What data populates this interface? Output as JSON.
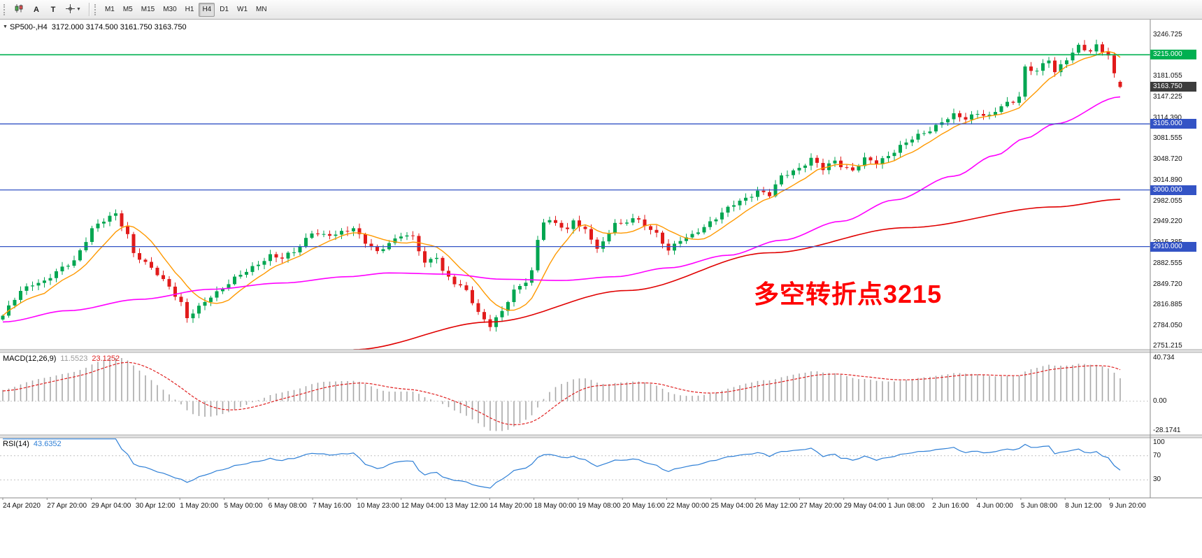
{
  "toolbar": {
    "button_a": "A",
    "button_t": "T",
    "timeframes": [
      "M1",
      "M5",
      "M15",
      "M30",
      "H1",
      "H4",
      "D1",
      "W1",
      "MN"
    ],
    "active_timeframe": "H4"
  },
  "chart": {
    "title": "SP500-,H4",
    "ohlc_text": "3172.000 3174.500 3161.750 3163.750",
    "last_ohlc": [
      3172.0,
      3174.5,
      3161.75,
      3163.75
    ],
    "candle_count": 189,
    "annotation": {
      "text": "多空转折点3215",
      "color": "#ff0000"
    },
    "price_axis": {
      "labels": [
        {
          "text": "3246.725",
          "value": 3246.725
        },
        {
          "text": "3181.055",
          "value": 3181.055
        },
        {
          "text": "3147.225",
          "value": 3147.225
        },
        {
          "text": "3114.390",
          "value": 3114.39
        },
        {
          "text": "3081.555",
          "value": 3081.555
        },
        {
          "text": "3048.720",
          "value": 3048.72
        },
        {
          "text": "3014.890",
          "value": 3014.89
        },
        {
          "text": "2982.055",
          "value": 2982.055
        },
        {
          "text": "2949.220",
          "value": 2949.22
        },
        {
          "text": "2916.385",
          "value": 2916.385
        },
        {
          "text": "2882.555",
          "value": 2882.555
        },
        {
          "text": "2849.720",
          "value": 2849.72
        },
        {
          "text": "2816.885",
          "value": 2816.885
        },
        {
          "text": "2784.050",
          "value": 2784.05
        },
        {
          "text": "2751.215",
          "value": 2751.215
        }
      ],
      "badges": [
        {
          "text": "3215.000",
          "value": 3215.0,
          "bg": "#00b050"
        },
        {
          "text": "3163.750",
          "value": 3163.75,
          "bg": "#3c3c3c"
        },
        {
          "text": "3105.000",
          "value": 3105.0,
          "bg": "#3353c5"
        },
        {
          "text": "3000.000",
          "value": 3000.0,
          "bg": "#3353c5"
        },
        {
          "text": "2910.000",
          "value": 2910.0,
          "bg": "#3353c5"
        }
      ]
    },
    "hlines": [
      {
        "value": 3215.0,
        "color": "#00b050",
        "width": 1.6
      },
      {
        "value": 3105.0,
        "color": "#3353c5",
        "width": 1.3
      },
      {
        "value": 3000.0,
        "color": "#3353c5",
        "width": 1.3
      },
      {
        "value": 2910.0,
        "color": "#3353c5",
        "width": 1.3
      }
    ],
    "price_path": [
      [
        0,
        2800
      ],
      [
        3,
        2838
      ],
      [
        5,
        2852
      ],
      [
        7,
        2855
      ],
      [
        9,
        2868
      ],
      [
        12,
        2888
      ],
      [
        15,
        2938
      ],
      [
        19,
        2962
      ],
      [
        21,
        2930
      ],
      [
        22,
        2900
      ],
      [
        24,
        2882
      ],
      [
        26,
        2866
      ],
      [
        28,
        2848
      ],
      [
        30,
        2820
      ],
      [
        31,
        2795
      ],
      [
        33,
        2812
      ],
      [
        35,
        2832
      ],
      [
        37,
        2845
      ],
      [
        39,
        2858
      ],
      [
        41,
        2870
      ],
      [
        43,
        2884
      ],
      [
        45,
        2896
      ],
      [
        47,
        2890
      ],
      [
        49,
        2902
      ],
      [
        52,
        2934
      ],
      [
        54,
        2926
      ],
      [
        56,
        2928
      ],
      [
        58,
        2938
      ],
      [
        59,
        2941
      ],
      [
        61,
        2916
      ],
      [
        63,
        2899
      ],
      [
        65,
        2916
      ],
      [
        67,
        2930
      ],
      [
        69,
        2924
      ],
      [
        71,
        2882
      ],
      [
        73,
        2896
      ],
      [
        74,
        2872
      ],
      [
        76,
        2852
      ],
      [
        78,
        2838
      ],
      [
        80,
        2805
      ],
      [
        82,
        2786
      ],
      [
        84,
        2806
      ],
      [
        86,
        2838
      ],
      [
        88,
        2856
      ],
      [
        89,
        2872
      ],
      [
        90,
        2922
      ],
      [
        91,
        2950
      ],
      [
        93,
        2946
      ],
      [
        95,
        2936
      ],
      [
        96,
        2954
      ],
      [
        98,
        2936
      ],
      [
        100,
        2906
      ],
      [
        101,
        2914
      ],
      [
        103,
        2950
      ],
      [
        104,
        2946
      ],
      [
        106,
        2956
      ],
      [
        108,
        2942
      ],
      [
        110,
        2930
      ],
      [
        112,
        2906
      ],
      [
        114,
        2920
      ],
      [
        116,
        2926
      ],
      [
        119,
        2950
      ],
      [
        121,
        2964
      ],
      [
        123,
        2976
      ],
      [
        125,
        2986
      ],
      [
        127,
        3000
      ],
      [
        129,
        2992
      ],
      [
        131,
        3020
      ],
      [
        134,
        3036
      ],
      [
        136,
        3050
      ],
      [
        138,
        3032
      ],
      [
        140,
        3046
      ],
      [
        141,
        3040
      ],
      [
        143,
        3032
      ],
      [
        145,
        3048
      ],
      [
        147,
        3042
      ],
      [
        149,
        3056
      ],
      [
        151,
        3070
      ],
      [
        153,
        3080
      ],
      [
        156,
        3096
      ],
      [
        158,
        3110
      ],
      [
        160,
        3118
      ],
      [
        162,
        3112
      ],
      [
        164,
        3124
      ],
      [
        166,
        3118
      ],
      [
        168,
        3132
      ],
      [
        170,
        3140
      ],
      [
        171,
        3150
      ],
      [
        172,
        3196
      ],
      [
        174,
        3190
      ],
      [
        176,
        3206
      ],
      [
        177,
        3186
      ],
      [
        179,
        3210
      ],
      [
        181,
        3230
      ],
      [
        183,
        3218
      ],
      [
        184,
        3228
      ],
      [
        186,
        3214
      ],
      [
        187,
        3186
      ],
      [
        188,
        3163.75
      ]
    ],
    "ma_medium": [
      [
        0,
        2790
      ],
      [
        11,
        2808
      ],
      [
        23,
        2826
      ],
      [
        35,
        2842
      ],
      [
        47,
        2852
      ],
      [
        58,
        2862
      ],
      [
        65,
        2868
      ],
      [
        75,
        2866
      ],
      [
        84,
        2858
      ],
      [
        94,
        2856
      ],
      [
        103,
        2862
      ],
      [
        112,
        2876
      ],
      [
        122,
        2896
      ],
      [
        131,
        2920
      ],
      [
        141,
        2950
      ],
      [
        150,
        2984
      ],
      [
        160,
        3022
      ],
      [
        167,
        3055
      ],
      [
        172,
        3082
      ],
      [
        177,
        3105
      ],
      [
        188,
        3148
      ]
    ],
    "ma_slow": [
      [
        59,
        2746
      ],
      [
        82,
        2790
      ],
      [
        105,
        2840
      ],
      [
        129,
        2900
      ],
      [
        152,
        2940
      ],
      [
        177,
        2973
      ],
      [
        188,
        2985
      ]
    ]
  },
  "macd": {
    "label": "MACD(12,26,9)",
    "value_main": "11.5523",
    "value_signal": "23.1252",
    "axis": [
      {
        "text": "40.734",
        "value": 40.734
      },
      {
        "text": "0.00",
        "value": 0
      },
      {
        "text": "-28.1741",
        "value": -28.1741
      }
    ],
    "range": {
      "max": 40.734,
      "min": -28.1741
    }
  },
  "rsi": {
    "label": "RSI(14)",
    "value": "43.6352",
    "axis": [
      {
        "text": "100",
        "value": 100
      },
      {
        "text": "70",
        "value": 70
      },
      {
        "text": "30",
        "value": 30
      }
    ],
    "levels": [
      70,
      30
    ]
  },
  "time_axis": {
    "labels": [
      "24 Apr 2020",
      "27 Apr 20:00",
      "29 Apr 04:00",
      "30 Apr 12:00",
      "1 May 20:00",
      "5 May 00:00",
      "6 May 08:00",
      "7 May 16:00",
      "10 May 23:00",
      "12 May 04:00",
      "13 May 12:00",
      "14 May 20:00",
      "18 May 00:00",
      "19 May 08:00",
      "20 May 16:00",
      "22 May 00:00",
      "25 May 04:00",
      "26 May 12:00",
      "27 May 20:00",
      "29 May 04:00",
      "1 Jun 08:00",
      "2 Jun 16:00",
      "4 Jun 00:00",
      "5 Jun 08:00",
      "8 Jun 12:00",
      "9 Jun 20:00"
    ]
  },
  "colors": {
    "bull": "#00a651",
    "bear": "#e11b1b",
    "ma_fast": "#ff9900",
    "ma_medium": "#ff00ff",
    "ma_slow": "#e00000",
    "macd_hist": "#a8a8a8",
    "macd_signal": "#e02020",
    "rsi_line": "#2e7fd6"
  }
}
